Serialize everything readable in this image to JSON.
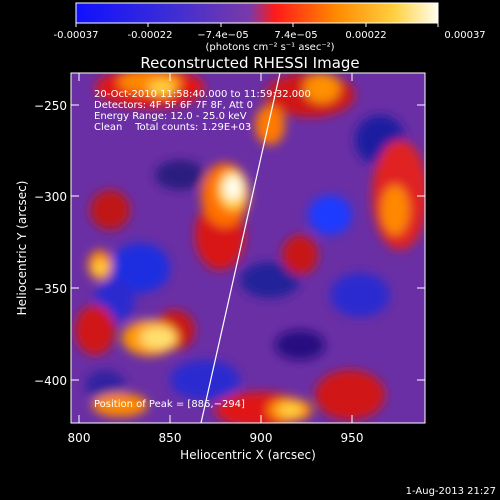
{
  "colorbar": {
    "tick_labels": [
      "-0.00037",
      "-0.00022",
      "−7.4e−05",
      "7.4e−05",
      "0.00022",
      "0.00037"
    ],
    "unit_label": "(photons cm⁻² s⁻¹ asec⁻²)",
    "stops": [
      "#1010ff",
      "#3a2cd8",
      "#7a3aa8",
      "#ff1a1a",
      "#ff8a00",
      "#ffd040",
      "#fffff0"
    ]
  },
  "plot": {
    "title": "Reconstructed RHESSI Image",
    "xlabel": "Heliocentric X (arcsec)",
    "ylabel": "Heliocentric Y (arcsec)",
    "x_ticks": [
      "800",
      "850",
      "900",
      "950"
    ],
    "y_ticks": [
      "−250",
      "−300",
      "−350",
      "−400"
    ],
    "info_lines": [
      "20-Oct-2010 11:58:40.000 to 11:59:32.000",
      "Detectors: 4F 5F 6F 7F 8F, Att 0",
      "Energy Range: 12.0 - 25.0 keV",
      "Clean    Total counts: 1.29E+03"
    ],
    "peak_label": "Position of Peak = [886,−294]"
  },
  "footer": {
    "date": "1-Aug-2013 21:27"
  }
}
